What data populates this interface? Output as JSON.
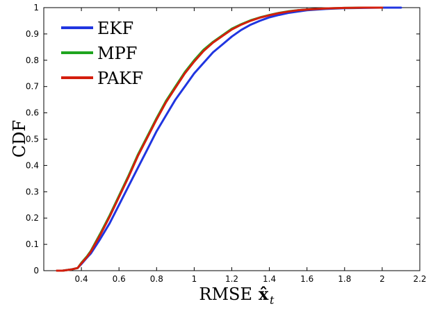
{
  "chart_data": {
    "type": "line",
    "title": "",
    "xlabel": "RMSE",
    "xlabel_math": "x̂",
    "xlabel_sub": "t",
    "ylabel": "CDF",
    "xlim": [
      0.2,
      2.2
    ],
    "ylim": [
      0,
      1
    ],
    "xticks": [
      0.4,
      0.6,
      0.8,
      1,
      1.2,
      1.4,
      1.6,
      1.8,
      2,
      2.2
    ],
    "xtick_labels": [
      "0.4",
      "0.6",
      "0.8",
      "1",
      "1.2",
      "1.4",
      "1.6",
      "1.8",
      "2",
      "2.2"
    ],
    "yticks": [
      0,
      0.1,
      0.2,
      0.3,
      0.4,
      0.5,
      0.6,
      0.7,
      0.8,
      0.9,
      1
    ],
    "ytick_labels": [
      "0",
      "0.1",
      "0.2",
      "0.3",
      "0.4",
      "0.5",
      "0.6",
      "0.7",
      "0.8",
      "0.9",
      "1"
    ],
    "grid": false,
    "legend_position": "top-left",
    "series": [
      {
        "name": "EKF",
        "color": "#2035e0",
        "x": [
          0.27,
          0.3,
          0.35,
          0.38,
          0.4,
          0.43,
          0.45,
          0.5,
          0.55,
          0.6,
          0.65,
          0.7,
          0.75,
          0.8,
          0.85,
          0.9,
          0.95,
          1.0,
          1.05,
          1.1,
          1.15,
          1.2,
          1.25,
          1.3,
          1.35,
          1.4,
          1.45,
          1.5,
          1.6,
          1.7,
          1.8,
          1.9,
          2.0,
          2.1
        ],
        "y": [
          0.0,
          0.0,
          0.005,
          0.01,
          0.025,
          0.05,
          0.065,
          0.12,
          0.18,
          0.25,
          0.32,
          0.39,
          0.46,
          0.53,
          0.59,
          0.65,
          0.7,
          0.75,
          0.79,
          0.83,
          0.86,
          0.89,
          0.915,
          0.935,
          0.95,
          0.963,
          0.972,
          0.98,
          0.99,
          0.995,
          0.998,
          0.999,
          1.0,
          1.0
        ]
      },
      {
        "name": "MPF",
        "color": "#1fa51f",
        "x": [
          0.27,
          0.3,
          0.35,
          0.38,
          0.4,
          0.43,
          0.45,
          0.5,
          0.55,
          0.6,
          0.65,
          0.7,
          0.75,
          0.8,
          0.85,
          0.9,
          0.95,
          1.0,
          1.05,
          1.1,
          1.15,
          1.2,
          1.25,
          1.3,
          1.35,
          1.4,
          1.45,
          1.5,
          1.55,
          1.6,
          1.7,
          1.8,
          1.9,
          2.0
        ],
        "y": [
          0.0,
          0.0,
          0.005,
          0.01,
          0.03,
          0.055,
          0.075,
          0.14,
          0.21,
          0.285,
          0.36,
          0.44,
          0.51,
          0.58,
          0.645,
          0.7,
          0.755,
          0.8,
          0.84,
          0.87,
          0.895,
          0.92,
          0.937,
          0.952,
          0.963,
          0.972,
          0.98,
          0.986,
          0.99,
          0.993,
          0.997,
          0.999,
          1.0,
          1.0
        ]
      },
      {
        "name": "PAKF",
        "color": "#d41e0d",
        "x": [
          0.27,
          0.3,
          0.35,
          0.38,
          0.4,
          0.43,
          0.45,
          0.5,
          0.55,
          0.6,
          0.65,
          0.7,
          0.75,
          0.8,
          0.85,
          0.9,
          0.95,
          1.0,
          1.05,
          1.1,
          1.15,
          1.2,
          1.25,
          1.3,
          1.35,
          1.4,
          1.45,
          1.5,
          1.55,
          1.6,
          1.7,
          1.8,
          1.9,
          2.0
        ],
        "y": [
          0.0,
          0.0,
          0.005,
          0.01,
          0.028,
          0.052,
          0.072,
          0.135,
          0.205,
          0.28,
          0.355,
          0.435,
          0.505,
          0.575,
          0.64,
          0.695,
          0.75,
          0.795,
          0.835,
          0.867,
          0.892,
          0.917,
          0.935,
          0.95,
          0.962,
          0.971,
          0.979,
          0.985,
          0.99,
          0.993,
          0.997,
          0.999,
          1.0,
          1.0
        ]
      }
    ]
  }
}
